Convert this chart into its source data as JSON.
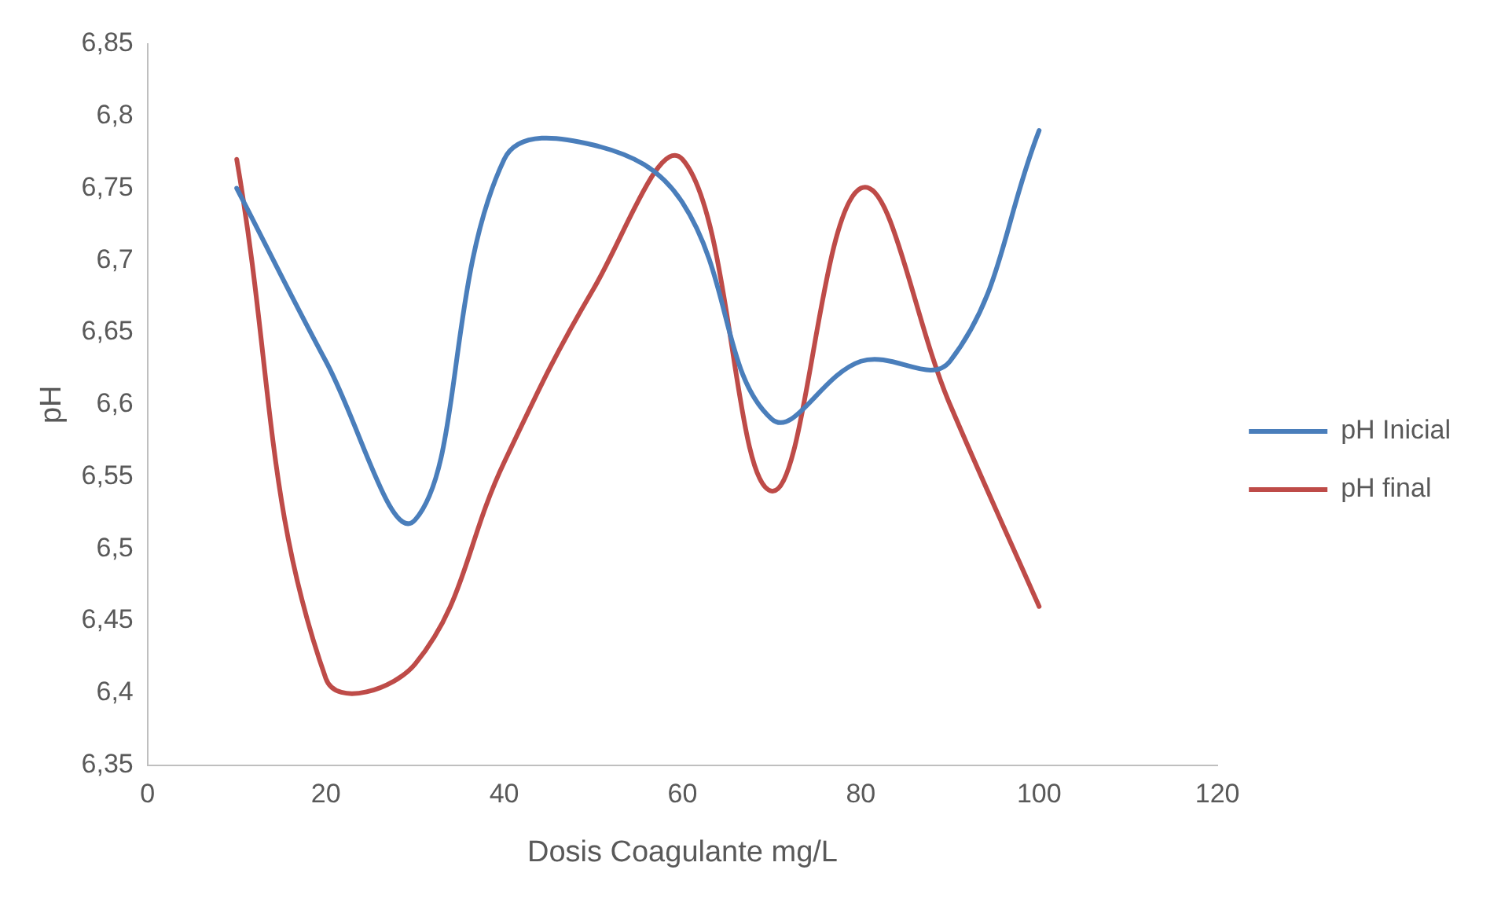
{
  "chart_data": {
    "type": "line",
    "xlabel": "Dosis Coagulante mg/L",
    "ylabel": "pH",
    "x": [
      10,
      20,
      30,
      40,
      50,
      60,
      70,
      80,
      90,
      100
    ],
    "series": [
      {
        "name": "pH Inicial",
        "color": "#4a7ebb",
        "values": [
          6.75,
          6.63,
          6.52,
          6.77,
          6.78,
          6.74,
          6.59,
          6.63,
          6.63,
          6.79
        ]
      },
      {
        "name": "pH final",
        "color": "#be4b48",
        "values": [
          6.77,
          6.41,
          6.42,
          6.56,
          6.68,
          6.77,
          6.54,
          6.75,
          6.6,
          6.46
        ]
      }
    ],
    "xlim": [
      0,
      120
    ],
    "xticks": [
      0,
      20,
      40,
      60,
      80,
      100,
      120
    ],
    "ylim": [
      6.35,
      6.85
    ],
    "yticks": [
      {
        "value": 6.35,
        "label": "6,35"
      },
      {
        "value": 6.4,
        "label": "6,4"
      },
      {
        "value": 6.45,
        "label": "6,45"
      },
      {
        "value": 6.5,
        "label": "6,5"
      },
      {
        "value": 6.55,
        "label": "6,55"
      },
      {
        "value": 6.6,
        "label": "6,6"
      },
      {
        "value": 6.65,
        "label": "6,65"
      },
      {
        "value": 6.7,
        "label": "6,7"
      },
      {
        "value": 6.75,
        "label": "6,75"
      },
      {
        "value": 6.8,
        "label": "6,8"
      },
      {
        "value": 6.85,
        "label": "6,85"
      }
    ],
    "grid": false,
    "legend": "right",
    "marker": "none",
    "line_style": "solid"
  }
}
